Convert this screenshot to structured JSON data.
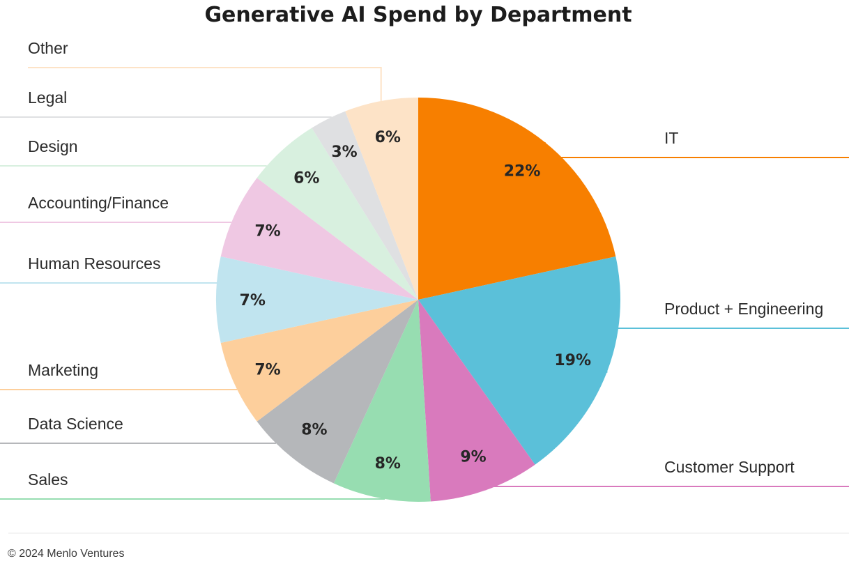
{
  "chart_data": {
    "type": "pie",
    "title": "Generative AI Spend by Department",
    "categories": [
      "IT",
      "Product + Engineering",
      "Customer Support",
      "Sales",
      "Data Science",
      "Marketing",
      "Human Resources",
      "Accounting/Finance",
      "Design",
      "Legal",
      "Other"
    ],
    "values": [
      22,
      19,
      9,
      8,
      8,
      7,
      7,
      7,
      6,
      3,
      6
    ],
    "value_labels": [
      "22%",
      "19%",
      "9%",
      "8%",
      "8%",
      "7%",
      "7%",
      "7%",
      "6%",
      "3%",
      "6%"
    ],
    "colors": [
      "#f77f00",
      "#5bc0d9",
      "#d97abd",
      "#97ddb1",
      "#b5b7ba",
      "#fdcf9c",
      "#c0e4ef",
      "#efc8e3",
      "#d8f0df",
      "#dfe0e2",
      "#fde3c7"
    ],
    "unit": "%"
  },
  "footer": {
    "copyright": "© 2024 Menlo Ventures"
  }
}
